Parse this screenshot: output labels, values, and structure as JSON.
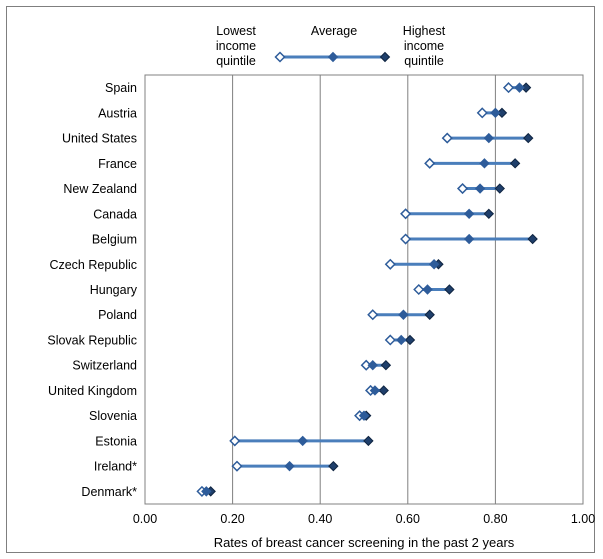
{
  "chart_data": {
    "type": "dot-range",
    "xlabel": "Rates of breast cancer screening in the past 2 years",
    "ylabel": "",
    "xlim": [
      0,
      1
    ],
    "x_ticks": [
      "0.00",
      "0.20",
      "0.40",
      "0.60",
      "0.80",
      "1.00"
    ],
    "grid": "vertical",
    "legend_position": "top",
    "legend": {
      "lowest": [
        "Lowest",
        "income",
        "quintile"
      ],
      "average": [
        "Average"
      ],
      "highest": [
        "Highest",
        "income",
        "quintile"
      ]
    },
    "colors": {
      "line": "#4a7ebb",
      "marker": "#2e5c9a",
      "highest": "#1f3f6b"
    },
    "categories": [
      "Spain",
      "Austria",
      "United States",
      "France",
      "New Zealand",
      "Canada",
      "Belgium",
      "Czech Republic",
      "Hungary",
      "Poland",
      "Slovak Republic",
      "Switzerland",
      "United Kingdom",
      "Slovenia",
      "Estonia",
      "Ireland*",
      "Denmark*"
    ],
    "series": [
      {
        "name": "Lowest income quintile",
        "values": [
          0.83,
          0.77,
          0.69,
          0.65,
          0.725,
          0.595,
          0.595,
          0.56,
          0.625,
          0.52,
          0.56,
          0.505,
          0.515,
          0.49,
          0.205,
          0.21,
          0.13
        ]
      },
      {
        "name": "Average",
        "values": [
          0.855,
          0.8,
          0.785,
          0.775,
          0.765,
          0.74,
          0.74,
          0.66,
          0.645,
          0.59,
          0.585,
          0.52,
          0.525,
          0.5,
          0.36,
          0.33,
          0.14
        ]
      },
      {
        "name": "Highest income quintile",
        "values": [
          0.87,
          0.815,
          0.875,
          0.845,
          0.81,
          0.785,
          0.885,
          0.67,
          0.695,
          0.65,
          0.605,
          0.55,
          0.545,
          0.505,
          0.51,
          0.43,
          0.15
        ]
      }
    ]
  }
}
